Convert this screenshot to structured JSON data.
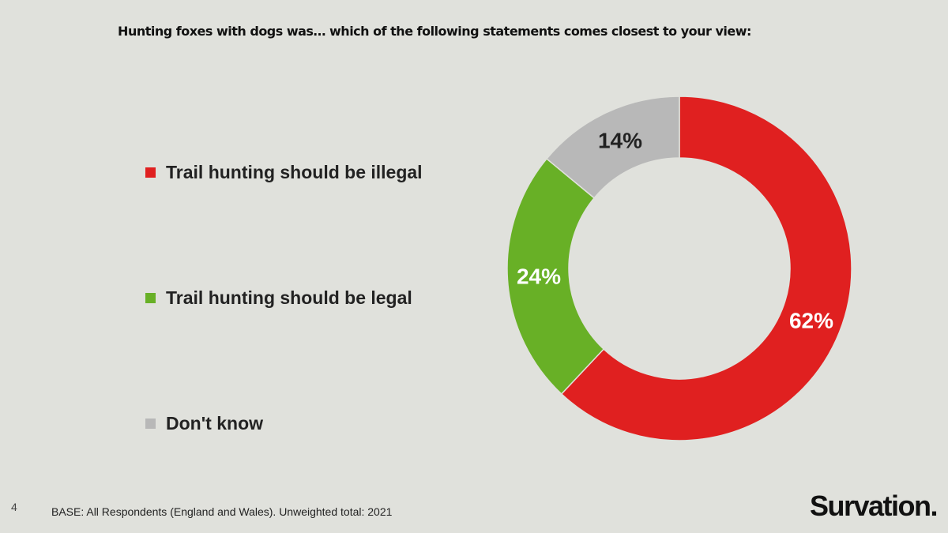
{
  "title": "Hunting foxes with dogs was… which of the following statements comes closest to your view:",
  "chart_data": {
    "type": "pie",
    "subtype": "donut",
    "categories": [
      "Trail hunting should be illegal",
      "Trail hunting should be legal",
      "Don't know"
    ],
    "values": [
      62,
      24,
      14
    ],
    "labels": [
      "62%",
      "24%",
      "14%"
    ],
    "colors": [
      "#e02020",
      "#68b026",
      "#b8b8b8"
    ],
    "label_colors": [
      "#ffffff",
      "#ffffff",
      "#222222"
    ],
    "legend_placement": "left",
    "start": "top",
    "direction": "clockwise"
  },
  "footer": {
    "page_number": "4",
    "base": "BASE: All Respondents (England and Wales). Unweighted total: 2021",
    "logo": "Survation."
  }
}
